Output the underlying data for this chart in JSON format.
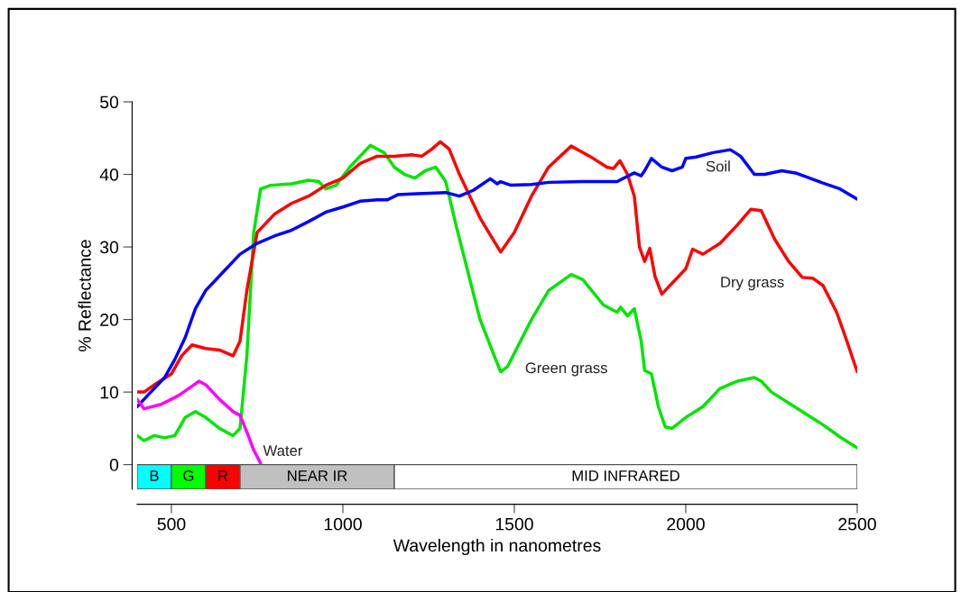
{
  "chart_data": {
    "type": "line",
    "xlabel": "Wavelength in nanometres",
    "ylabel": "% Reflectance",
    "xlim": [
      400,
      2500
    ],
    "ylim": [
      -3.4,
      50
    ],
    "xticks": [
      500,
      1000,
      1500,
      2000,
      2500
    ],
    "yticks": [
      0,
      10,
      20,
      30,
      40,
      50
    ],
    "grid": false,
    "legend": false,
    "marker": "none",
    "line_style": "solid",
    "series": [
      {
        "name": "Green grass",
        "color": "#00e600",
        "x": [
          400,
          420,
          450,
          480,
          510,
          540,
          570,
          600,
          640,
          680,
          700,
          720,
          740,
          760,
          790,
          850,
          900,
          930,
          950,
          980,
          1020,
          1080,
          1120,
          1150,
          1180,
          1210,
          1240,
          1271,
          1300,
          1330,
          1400,
          1460,
          1480,
          1550,
          1600,
          1666,
          1700,
          1760,
          1800,
          1810,
          1830,
          1850,
          1870,
          1880,
          1900,
          1920,
          1940,
          1960,
          2000,
          2050,
          2100,
          2150,
          2200,
          2220,
          2250,
          2300,
          2400,
          2450,
          2500
        ],
        "values": [
          4,
          3.3,
          4,
          3.7,
          4,
          6.5,
          7.3,
          6.5,
          5,
          4,
          5,
          15,
          32,
          38,
          38.5,
          38.7,
          39.2,
          39,
          38,
          38.5,
          41,
          44,
          43,
          41,
          40,
          39.5,
          40.5,
          41,
          39,
          33,
          20,
          12.8,
          13.5,
          20,
          24,
          26.2,
          25.5,
          22,
          21,
          21.7,
          20.5,
          21.5,
          17,
          13,
          12.5,
          8,
          5.2,
          5,
          6.5,
          8,
          10.5,
          11.5,
          12,
          11.5,
          10,
          8.5,
          5.5,
          3.8,
          2.3
        ]
      },
      {
        "name": "Dry grass",
        "color": "#ff0000",
        "x": [
          400,
          420,
          450,
          500,
          530,
          560,
          600,
          640,
          680,
          700,
          720,
          750,
          800,
          850,
          900,
          950,
          1000,
          1050,
          1100,
          1150,
          1200,
          1230,
          1260,
          1284,
          1310,
          1340,
          1400,
          1460,
          1500,
          1550,
          1600,
          1666,
          1720,
          1770,
          1789,
          1808,
          1830,
          1850,
          1865,
          1880,
          1895,
          1910,
          1930,
          1960,
          2000,
          2020,
          2050,
          2100,
          2150,
          2190,
          2220,
          2260,
          2300,
          2340,
          2370,
          2400,
          2440,
          2470,
          2500
        ],
        "values": [
          10,
          10,
          11,
          12.5,
          15,
          16.5,
          16,
          15.8,
          15,
          17,
          24,
          32,
          34.5,
          36,
          37,
          38.5,
          39.5,
          41.5,
          42.5,
          42.5,
          42.7,
          42.5,
          43.5,
          44.5,
          43.5,
          40,
          34,
          29.3,
          32,
          37,
          41,
          43.9,
          42.5,
          41,
          40.8,
          41.9,
          40,
          37,
          30,
          28,
          29.8,
          26,
          23.5,
          25,
          27,
          29.7,
          29,
          30.5,
          33,
          35.2,
          35,
          31,
          28,
          25.8,
          25.7,
          24.7,
          21,
          17,
          12.8
        ]
      },
      {
        "name": "Soil",
        "color": "#0000ff",
        "x": [
          400,
          430,
          480,
          510,
          540,
          570,
          600,
          650,
          700,
          750,
          800,
          850,
          900,
          950,
          1000,
          1050,
          1100,
          1130,
          1160,
          1200,
          1250,
          1300,
          1340,
          1380,
          1430,
          1450,
          1460,
          1490,
          1550,
          1600,
          1700,
          1800,
          1820,
          1850,
          1870,
          1880,
          1900,
          1930,
          1960,
          1990,
          2000,
          2030,
          2080,
          2130,
          2160,
          2200,
          2230,
          2280,
          2320,
          2400,
          2450,
          2500
        ],
        "values": [
          8,
          9.5,
          12,
          14.5,
          17.5,
          21.5,
          24,
          26.5,
          29,
          30.5,
          31.5,
          32.3,
          33.5,
          34.8,
          35.5,
          36.3,
          36.5,
          36.5,
          37.2,
          37.3,
          37.4,
          37.5,
          37,
          37.8,
          39.4,
          38.7,
          39,
          38.5,
          38.6,
          38.9,
          39,
          39,
          39.5,
          40.2,
          39.8,
          40.5,
          42.2,
          41,
          40.5,
          41,
          42.2,
          42.4,
          43,
          43.4,
          42.5,
          40,
          40,
          40.5,
          40.2,
          38.8,
          38,
          36.6
        ]
      },
      {
        "name": "Water",
        "color": "#ff00ff",
        "x": [
          400,
          420,
          470,
          520,
          560,
          580,
          600,
          640,
          680,
          700,
          720,
          740,
          760
        ],
        "values": [
          9,
          7.7,
          8.3,
          9.5,
          10.8,
          11.5,
          11,
          9,
          7.3,
          6.8,
          4.5,
          2,
          0.2
        ]
      }
    ],
    "bands": [
      {
        "axis": "x",
        "from": 400,
        "to": 500,
        "label": "B",
        "color": "#00ffff"
      },
      {
        "axis": "x",
        "from": 500,
        "to": 600,
        "label": "G",
        "color": "#00ff00"
      },
      {
        "axis": "x",
        "from": 600,
        "to": 700,
        "label": "R",
        "color": "#ff0000"
      },
      {
        "axis": "x",
        "from": 700,
        "to": 1150,
        "label": "NEAR IR",
        "color": "#c0c0c0"
      },
      {
        "axis": "x",
        "from": 1150,
        "to": 2500,
        "label": "MID INFRARED",
        "color": "#ffffff"
      }
    ]
  }
}
